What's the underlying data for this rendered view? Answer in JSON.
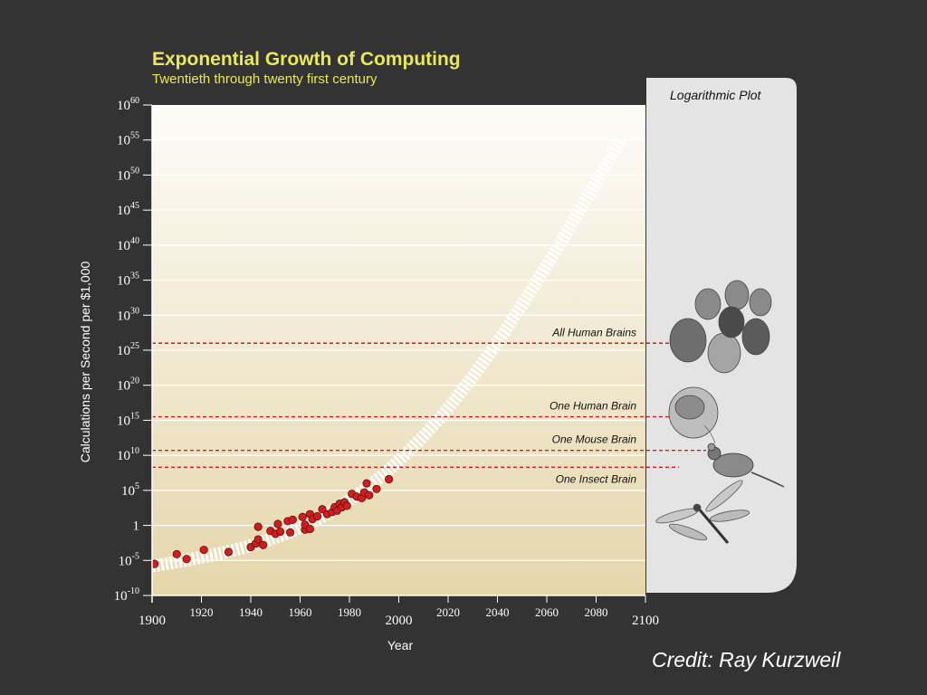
{
  "chart_data": {
    "type": "scatter",
    "title": "Exponential Growth of Computing",
    "subtitle": "Twentieth through twenty first century",
    "xlabel": "Year",
    "ylabel": "Calculations per Second per $1,000",
    "xlim": [
      1900,
      2100
    ],
    "ylim_log10": [
      -10,
      60
    ],
    "log_scale_y": true,
    "x_ticks": [
      {
        "value": 1900,
        "label": "1900",
        "major": true
      },
      {
        "value": 1920,
        "label": "1920",
        "major": false
      },
      {
        "value": 1940,
        "label": "1940",
        "major": false
      },
      {
        "value": 1960,
        "label": "1960",
        "major": false
      },
      {
        "value": 1980,
        "label": "1980",
        "major": false
      },
      {
        "value": 2000,
        "label": "2000",
        "major": true
      },
      {
        "value": 2020,
        "label": "2020",
        "major": false
      },
      {
        "value": 2040,
        "label": "2040",
        "major": false
      },
      {
        "value": 2060,
        "label": "2060",
        "major": false
      },
      {
        "value": 2080,
        "label": "2080",
        "major": false
      },
      {
        "value": 2100,
        "label": "2100",
        "major": true
      }
    ],
    "y_ticks": [
      {
        "exp": 60,
        "base": "10",
        "sup": "60"
      },
      {
        "exp": 55,
        "base": "10",
        "sup": "55"
      },
      {
        "exp": 50,
        "base": "10",
        "sup": "50"
      },
      {
        "exp": 45,
        "base": "10",
        "sup": "45"
      },
      {
        "exp": 40,
        "base": "10",
        "sup": "40"
      },
      {
        "exp": 35,
        "base": "10",
        "sup": "35"
      },
      {
        "exp": 30,
        "base": "10",
        "sup": "30"
      },
      {
        "exp": 25,
        "base": "10",
        "sup": "25"
      },
      {
        "exp": 20,
        "base": "10",
        "sup": "20"
      },
      {
        "exp": 15,
        "base": "10",
        "sup": "15"
      },
      {
        "exp": 10,
        "base": "10",
        "sup": "10"
      },
      {
        "exp": 5,
        "base": "10",
        "sup": "5"
      },
      {
        "exp": 0,
        "base": "1",
        "sup": ""
      },
      {
        "exp": -5,
        "base": "10",
        "sup": "-5"
      },
      {
        "exp": -10,
        "base": "10",
        "sup": "-10"
      }
    ],
    "points_log10": [
      [
        1901,
        -5.5
      ],
      [
        1910,
        -4.1
      ],
      [
        1914,
        -4.8
      ],
      [
        1921,
        -3.5
      ],
      [
        1931,
        -3.8
      ],
      [
        1940,
        -3.1
      ],
      [
        1942,
        -2.6
      ],
      [
        1943,
        -2.0
      ],
      [
        1943,
        -0.2
      ],
      [
        1945,
        -2.8
      ],
      [
        1948,
        -0.8
      ],
      [
        1950,
        -1.2
      ],
      [
        1951,
        0.2
      ],
      [
        1952,
        -0.9
      ],
      [
        1955,
        0.6
      ],
      [
        1956,
        -1.0
      ],
      [
        1957,
        0.8
      ],
      [
        1961,
        1.2
      ],
      [
        1962,
        -0.6
      ],
      [
        1962,
        0.1
      ],
      [
        1964,
        -0.5
      ],
      [
        1964,
        1.6
      ],
      [
        1965,
        0.9
      ],
      [
        1967,
        1.3
      ],
      [
        1969,
        2.3
      ],
      [
        1971,
        1.6
      ],
      [
        1973,
        1.9
      ],
      [
        1974,
        2.6
      ],
      [
        1975,
        2.1
      ],
      [
        1976,
        3.1
      ],
      [
        1977,
        2.6
      ],
      [
        1978,
        3.3
      ],
      [
        1979,
        2.8
      ],
      [
        1981,
        4.5
      ],
      [
        1983,
        4.1
      ],
      [
        1985,
        3.9
      ],
      [
        1986,
        4.7
      ],
      [
        1987,
        6.0
      ],
      [
        1988,
        4.3
      ],
      [
        1991,
        5.2
      ],
      [
        1996,
        6.6
      ]
    ],
    "trend_log10": [
      [
        1900,
        -5.8
      ],
      [
        1920,
        -4.6
      ],
      [
        1940,
        -3.0
      ],
      [
        1960,
        -0.5
      ],
      [
        1980,
        3.4
      ],
      [
        2000,
        9.0
      ],
      [
        2020,
        16.5
      ],
      [
        2040,
        26.0
      ],
      [
        2060,
        37.0
      ],
      [
        2080,
        49.0
      ],
      [
        2090,
        55.0
      ]
    ],
    "thresholds": [
      {
        "label": "All Human Brains",
        "log10": 26.0
      },
      {
        "label": "One Human Brain",
        "log10": 15.5
      },
      {
        "label": "One Mouse Brain",
        "log10": 10.7
      },
      {
        "label": "One Insect Brain",
        "log10": 8.3
      }
    ],
    "panel_label": "Logarithmic Plot",
    "credit": "Credit: Ray Kurzweil",
    "colors": {
      "background": "#333333",
      "title": "#e8e85a",
      "plot_top": "#fdfcf8",
      "plot_bottom": "#e5d6ab",
      "point": "#cc1f1f",
      "threshold": "#d81c1c",
      "panel": "#e4e4e4"
    }
  },
  "icons": [
    "human-heads-icon",
    "human-brain-icon",
    "mouse-icon",
    "dragonfly-icon"
  ]
}
